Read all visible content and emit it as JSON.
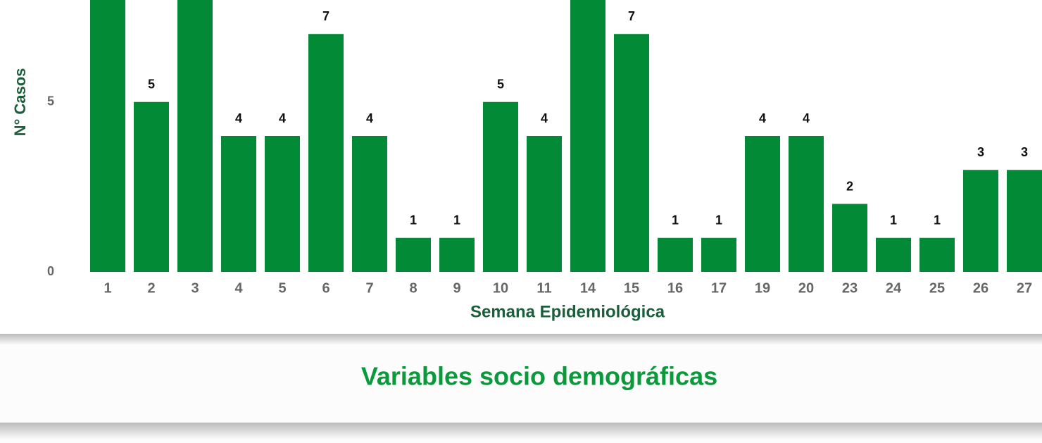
{
  "chart_data": {
    "type": "bar",
    "x_label": "Semana Epidemiológica",
    "y_label": "N° Casos",
    "categories": [
      "1",
      "2",
      "3",
      "4",
      "5",
      "6",
      "7",
      "8",
      "9",
      "10",
      "11",
      "14",
      "15",
      "16",
      "17",
      "19",
      "20",
      "23",
      "24",
      "25",
      "26",
      "27"
    ],
    "values": [
      8,
      5,
      8,
      4,
      4,
      7,
      4,
      1,
      1,
      5,
      4,
      8,
      7,
      1,
      1,
      4,
      4,
      2,
      1,
      1,
      3,
      3
    ],
    "color": "#028a36",
    "ylim": [
      0,
      8
    ],
    "yticks": [
      0,
      5
    ],
    "grid": false
  },
  "section": {
    "title": "Variables socio demográficas"
  }
}
